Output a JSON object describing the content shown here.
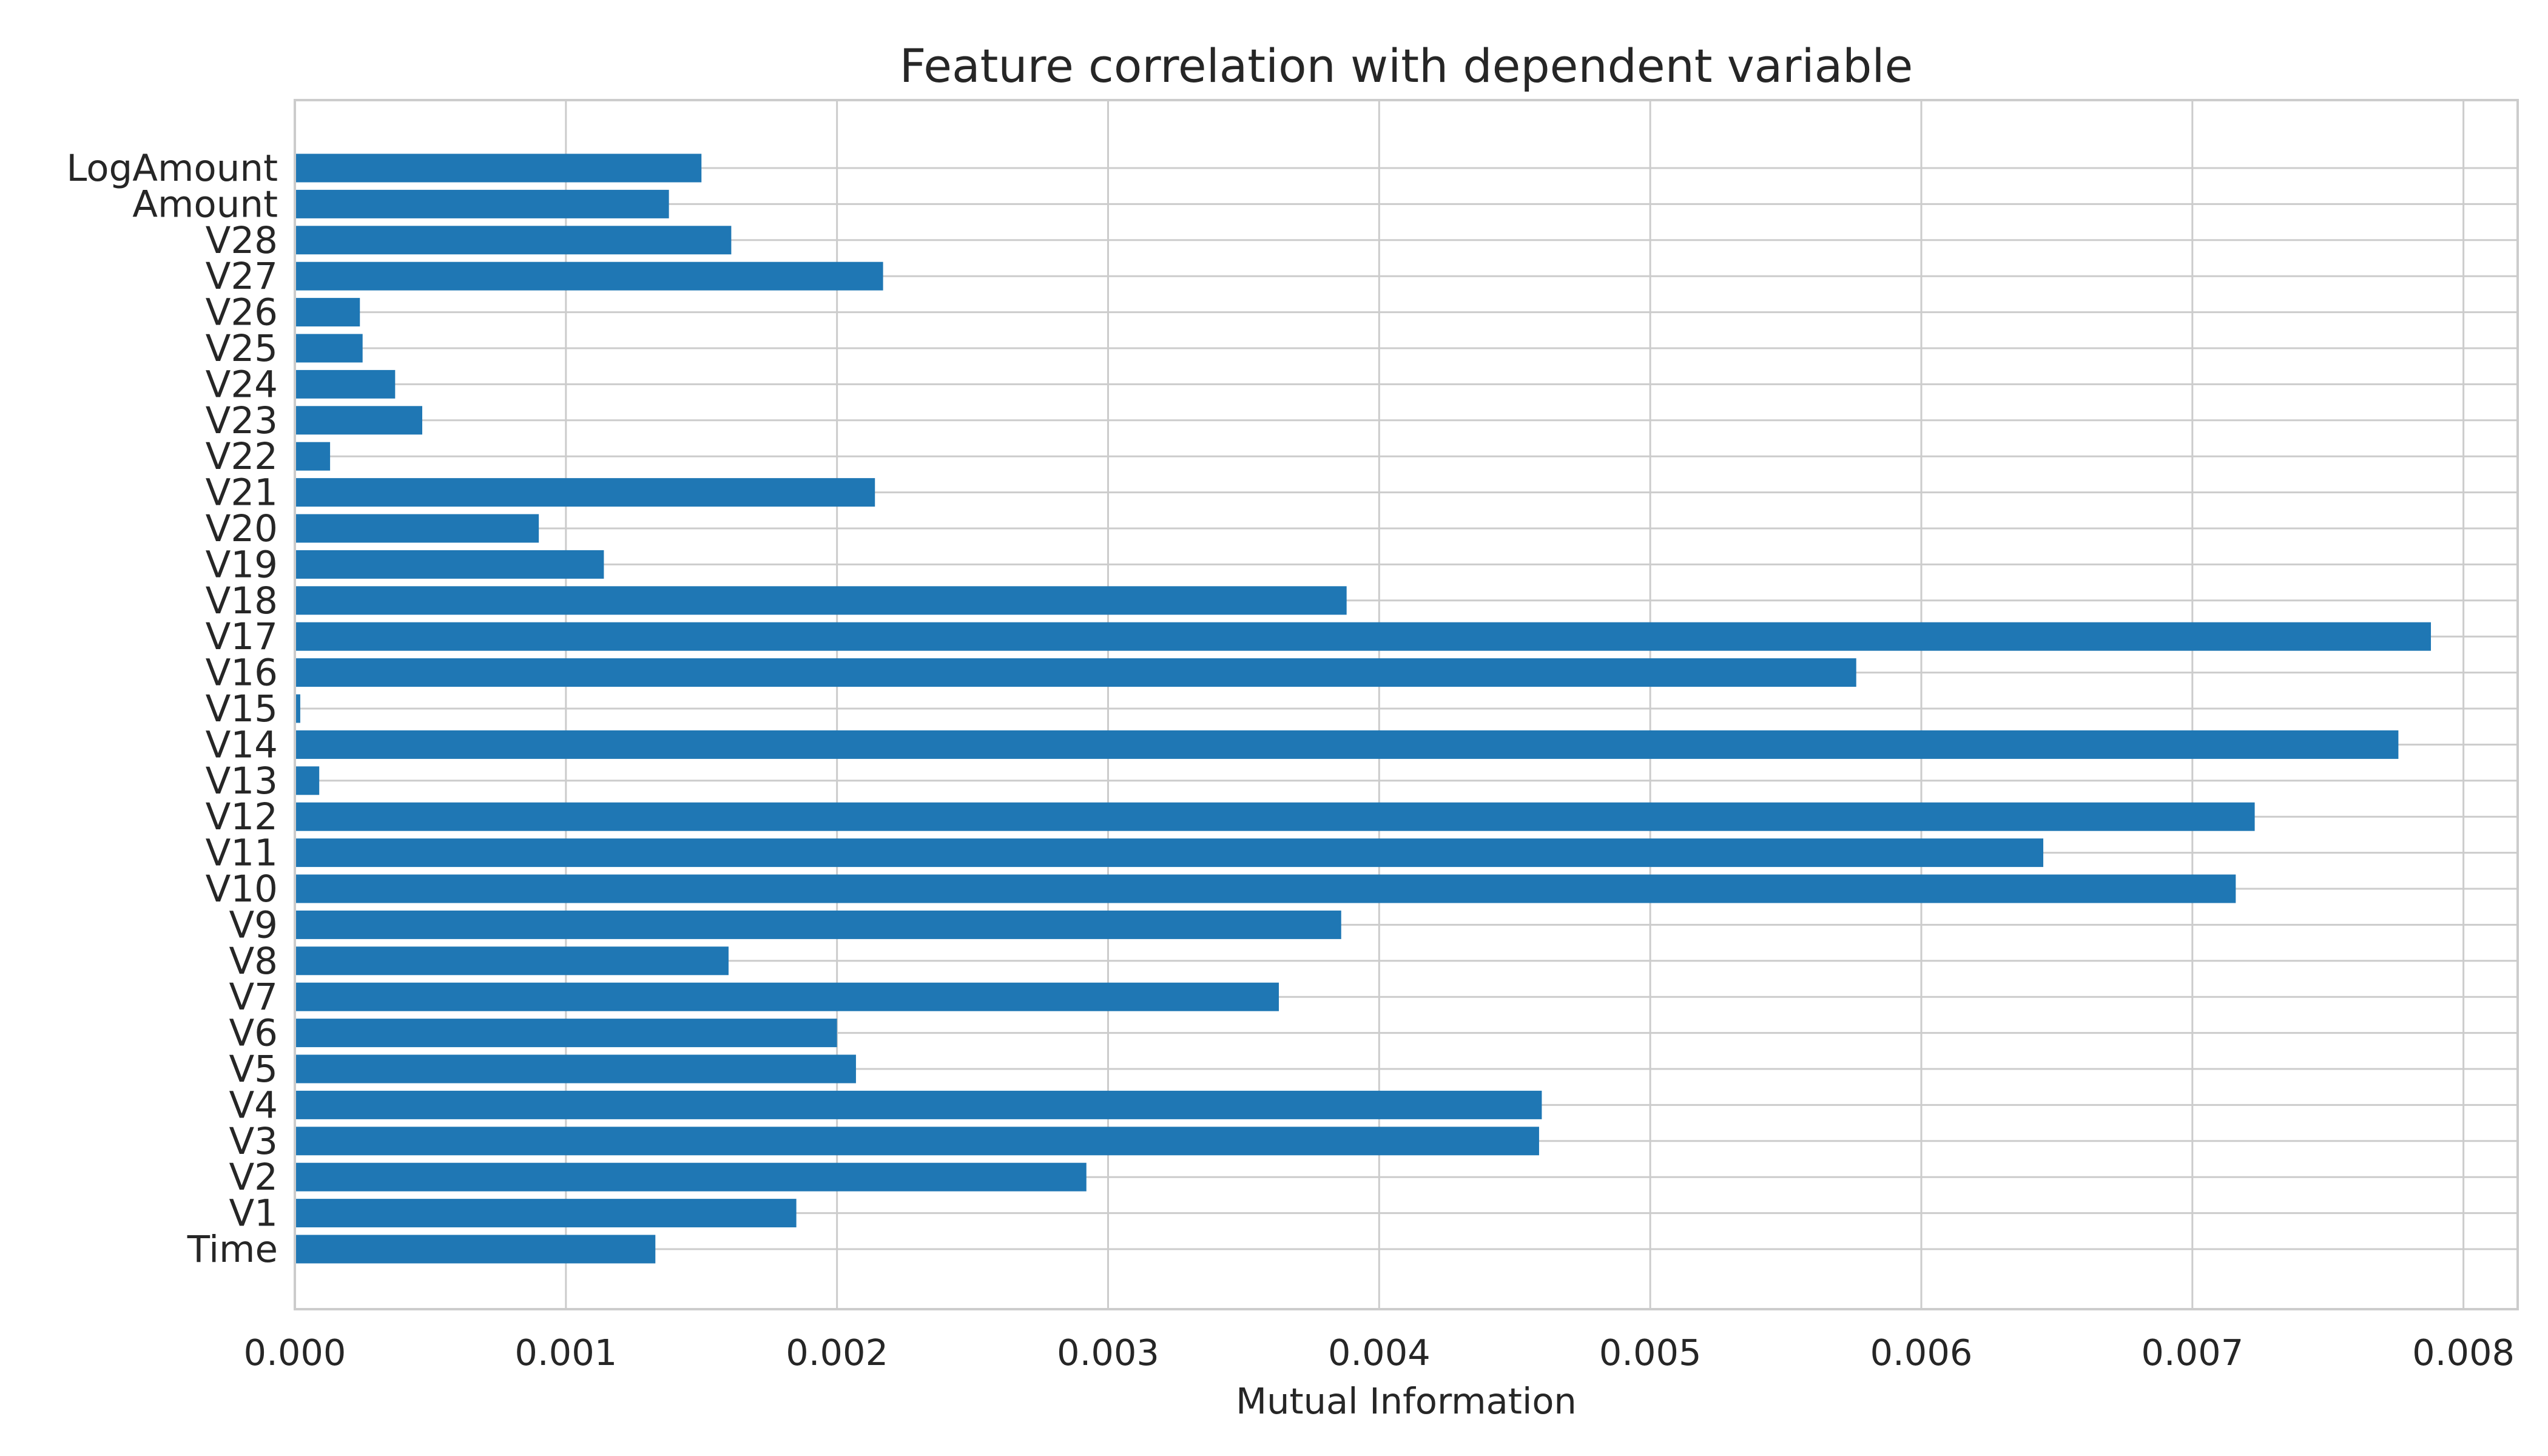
{
  "chart_data": {
    "type": "bar",
    "orientation": "horizontal",
    "title": "Feature correlation with dependent variable",
    "xlabel": "Mutual Information",
    "ylabel": "",
    "xlim": [
      0,
      0.0082
    ],
    "xticks": [
      "0.000",
      "0.001",
      "0.002",
      "0.003",
      "0.004",
      "0.005",
      "0.006",
      "0.007",
      "0.008"
    ],
    "grid": true,
    "bar_color": "#1f77b4",
    "categories": [
      "Time",
      "V1",
      "V2",
      "V3",
      "V4",
      "V5",
      "V6",
      "V7",
      "V8",
      "V9",
      "V10",
      "V11",
      "V12",
      "V13",
      "V14",
      "V15",
      "V16",
      "V17",
      "V18",
      "V19",
      "V20",
      "V21",
      "V22",
      "V23",
      "V24",
      "V25",
      "V26",
      "V27",
      "V28",
      "Amount",
      "LogAmount"
    ],
    "values": [
      0.00133,
      0.00185,
      0.00292,
      0.00459,
      0.0046,
      0.00207,
      0.002,
      0.00363,
      0.0016,
      0.00386,
      0.00716,
      0.00645,
      0.00723,
      9e-05,
      0.00776,
      2e-05,
      0.00576,
      0.00788,
      0.00388,
      0.00114,
      0.0009,
      0.00214,
      0.00013,
      0.00047,
      0.00037,
      0.00025,
      0.00024,
      0.00217,
      0.00161,
      0.00138,
      0.0015
    ]
  }
}
